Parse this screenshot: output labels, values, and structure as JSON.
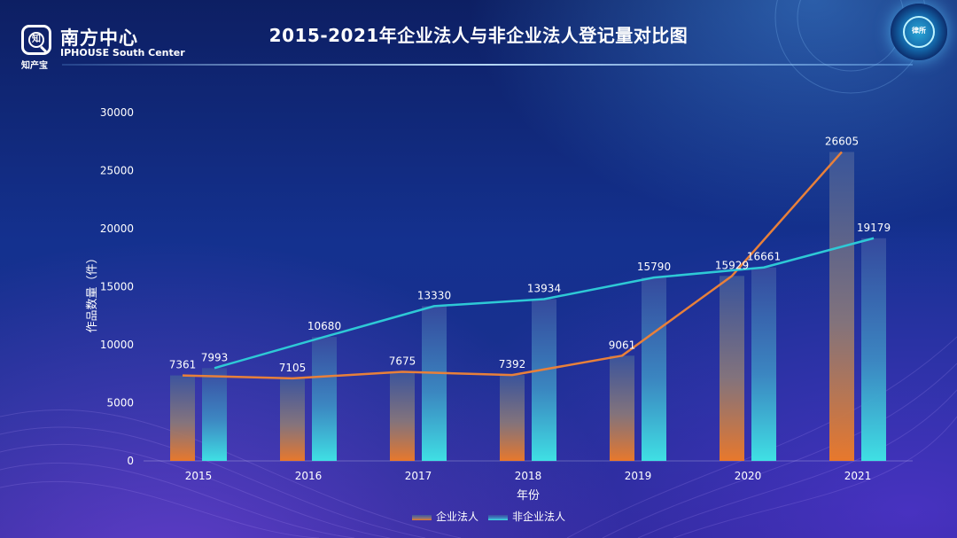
{
  "header": {
    "logo_cn": "南方中心",
    "logo_en": "IPHOUSE South Center",
    "logo_sub": "知产宝",
    "logo_mark": "知",
    "badge_text": "律所"
  },
  "colors": {
    "enterprise": "#e8803a",
    "non_enterprise": "#2ec9d6",
    "axis_text": "#ffffff"
  },
  "legend_placement": "bottom-center",
  "chart_data": {
    "type": "bar",
    "title": "2015-2021年企业法人与非企业法人登记量对比图",
    "xlabel": "年份",
    "ylabel": "作品数量（件）",
    "categories": [
      "2015",
      "2016",
      "2017",
      "2018",
      "2019",
      "2020",
      "2021"
    ],
    "ylim": [
      0,
      30000
    ],
    "yticks": [
      0,
      5000,
      10000,
      15000,
      20000,
      25000,
      30000
    ],
    "grid": false,
    "overlay_lines": true,
    "series": [
      {
        "name": "企业法人",
        "values": [
          7361,
          7105,
          7675,
          7392,
          9061,
          15929,
          26605
        ]
      },
      {
        "name": "非企业法人",
        "values": [
          7993,
          10680,
          13330,
          13934,
          15790,
          16661,
          19179
        ]
      }
    ]
  }
}
